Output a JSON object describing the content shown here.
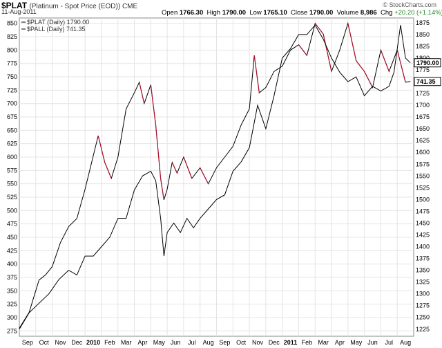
{
  "header": {
    "symbol": "$PLAT",
    "description": "(Platinum - Spot Price (EOD)) CME",
    "date": "11-Aug-2011",
    "brand": "© StockCharts.com",
    "quote": {
      "open_label": "Open",
      "open": "1766.30",
      "high_label": "High",
      "high": "1790.00",
      "low_label": "Low",
      "low": "1765.10",
      "close_label": "Close",
      "close": "1790.00",
      "volume_label": "Volume",
      "volume": "8,986",
      "chg_label": "Chg",
      "chg": "+20.20 (+1.14%)",
      "chg_color": "#2a8a2a"
    }
  },
  "chart_data": {
    "type": "line",
    "legend": [
      {
        "text": "$PLAT (Daily) 1790.00",
        "color": "#000000"
      },
      {
        "text": "$PALL (Daily) 741.35",
        "color": "#000000"
      }
    ],
    "legend_position": "top-left",
    "grid": true,
    "x_ticks": [
      "Sep",
      "Oct",
      "Nov",
      "Dec",
      "2010",
      "Feb",
      "Mar",
      "Apr",
      "May",
      "Jun",
      "Jul",
      "Aug",
      "Sep",
      "Oct",
      "Nov",
      "Dec",
      "2011",
      "Feb",
      "Mar",
      "Apr",
      "May",
      "Jun",
      "Jul",
      "Aug"
    ],
    "x_bold_ticks": [
      "2010",
      "2011"
    ],
    "x_tick_positions": [
      0.5,
      1.5,
      2.5,
      3.5,
      4.5,
      5.5,
      6.5,
      7.5,
      8.5,
      9.5,
      10.5,
      11.5,
      12.5,
      13.5,
      14.5,
      15.5,
      16.5,
      17.5,
      18.5,
      19.5,
      20.5,
      21.5,
      22.5,
      23.5
    ],
    "left_axis": {
      "series": "$PALL",
      "ylim": [
        265,
        860
      ],
      "ticks": [
        275,
        300,
        325,
        350,
        375,
        400,
        425,
        450,
        475,
        500,
        525,
        550,
        575,
        600,
        625,
        650,
        675,
        700,
        725,
        750,
        775,
        800,
        825,
        850
      ]
    },
    "right_axis": {
      "series": "$PLAT",
      "ylim": [
        1210,
        1885
      ],
      "ticks": [
        1225,
        1250,
        1275,
        1300,
        1325,
        1350,
        1375,
        1400,
        1425,
        1450,
        1475,
        1500,
        1525,
        1550,
        1575,
        1600,
        1625,
        1650,
        1675,
        1700,
        1725,
        1750,
        1775,
        1800,
        1825,
        1850,
        1875
      ]
    },
    "series": [
      {
        "name": "$PALL",
        "axis": "left",
        "color": "#000000",
        "down_color": "#b0102a",
        "x": [
          0,
          0.6,
          1.2,
          1.6,
          2.0,
          2.5,
          3.0,
          3.5,
          4.0,
          4.4,
          4.8,
          5.2,
          5.6,
          6.0,
          6.5,
          7.0,
          7.3,
          7.6,
          8.0,
          8.3,
          8.6,
          8.8,
          9.0,
          9.3,
          9.6,
          10.0,
          10.5,
          11.0,
          11.5,
          12.0,
          12.5,
          13.0,
          13.5,
          14.0,
          14.3,
          14.6,
          15.0,
          15.5,
          16.0,
          16.5,
          17.0,
          17.5,
          18.0,
          18.5,
          19.0,
          19.5,
          20.0,
          20.5,
          21.0,
          21.5,
          22.0,
          22.5,
          23.0,
          23.5,
          23.8
        ],
        "y": [
          280,
          310,
          370,
          380,
          395,
          440,
          470,
          485,
          540,
          590,
          640,
          590,
          560,
          600,
          690,
          720,
          740,
          700,
          735,
          660,
          560,
          520,
          540,
          590,
          570,
          600,
          560,
          580,
          550,
          580,
          600,
          620,
          660,
          690,
          790,
          720,
          730,
          760,
          770,
          800,
          810,
          790,
          850,
          830,
          760,
          800,
          850,
          780,
          760,
          730,
          800,
          760,
          800,
          740,
          741.35
        ]
      },
      {
        "name": "$PLAT",
        "axis": "right",
        "color": "#000000",
        "x": [
          0,
          0.6,
          1.2,
          1.8,
          2.4,
          3.0,
          3.5,
          4.0,
          4.5,
          5.0,
          5.5,
          6.0,
          6.5,
          7.0,
          7.5,
          8.0,
          8.3,
          8.6,
          8.8,
          9.0,
          9.4,
          9.8,
          10.2,
          10.6,
          11.0,
          11.5,
          12.0,
          12.5,
          13.0,
          13.5,
          14.0,
          14.5,
          15.0,
          15.5,
          16.0,
          16.5,
          17.0,
          17.5,
          18.0,
          18.5,
          19.0,
          19.5,
          20.0,
          20.5,
          21.0,
          21.5,
          22.0,
          22.5,
          22.8,
          23.2,
          23.5,
          23.8
        ],
        "y": [
          1225,
          1260,
          1280,
          1300,
          1330,
          1350,
          1340,
          1380,
          1380,
          1400,
          1420,
          1460,
          1460,
          1520,
          1550,
          1560,
          1540,
          1460,
          1380,
          1430,
          1450,
          1430,
          1460,
          1440,
          1460,
          1480,
          1500,
          1510,
          1560,
          1580,
          1610,
          1700,
          1650,
          1720,
          1800,
          1820,
          1850,
          1850,
          1870,
          1840,
          1800,
          1770,
          1750,
          1760,
          1720,
          1740,
          1730,
          1740,
          1770,
          1870,
          1800,
          1790
        ]
      }
    ]
  }
}
